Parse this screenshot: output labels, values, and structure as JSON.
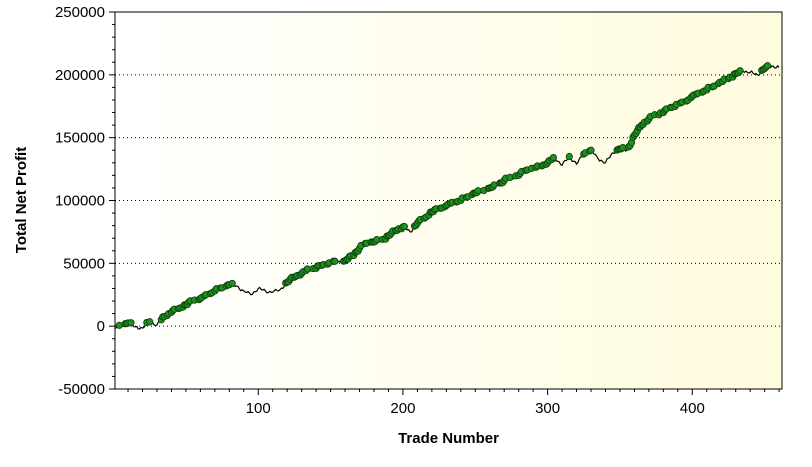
{
  "colors": {
    "background": "#ffffff",
    "plot_bg_start": "#ffffff",
    "plot_bg_end": "#fffbdd",
    "equity_line": "#000000",
    "new_high_marker": "#1f8f1f",
    "new_high_marker_edge": "#0a3d0a",
    "grid": "#000000"
  },
  "chart_data": {
    "type": "line",
    "title": "",
    "xlabel": "Trade Number",
    "ylabel": "Total Net Profit",
    "xlim": [
      1,
      462
    ],
    "ylim": [
      -50000,
      250000
    ],
    "x_ticks": [
      100,
      200,
      300,
      400
    ],
    "x_tick_labels": [
      "100",
      "200",
      "300",
      "400"
    ],
    "y_ticks": [
      -50000,
      0,
      50000,
      100000,
      150000,
      200000,
      250000
    ],
    "y_tick_labels": [
      "-50000",
      "0",
      "50000",
      "100000",
      "150000",
      "200000",
      "250000"
    ],
    "grid": "horizontal dotted",
    "series": [
      {
        "markers": "green dots at new equity highs",
        "x": [
          1,
          5,
          10,
          15,
          20,
          25,
          30,
          35,
          40,
          45,
          50,
          55,
          60,
          65,
          70,
          75,
          80,
          85,
          90,
          95,
          100,
          105,
          110,
          115,
          120,
          125,
          130,
          135,
          140,
          145,
          150,
          155,
          160,
          165,
          170,
          175,
          180,
          185,
          190,
          195,
          200,
          205,
          210,
          215,
          220,
          225,
          230,
          235,
          240,
          245,
          250,
          255,
          260,
          265,
          270,
          275,
          280,
          285,
          290,
          295,
          300,
          305,
          310,
          315,
          320,
          325,
          330,
          335,
          340,
          345,
          350,
          355,
          360,
          365,
          370,
          375,
          380,
          385,
          390,
          395,
          400,
          405,
          410,
          415,
          420,
          425,
          430,
          435,
          440,
          445,
          450,
          455,
          460
        ],
        "y": [
          -2000,
          500,
          2500,
          -500,
          -1500,
          3500,
          1000,
          7500,
          11000,
          14000,
          17000,
          20000,
          22000,
          24500,
          28000,
          30500,
          33000,
          32000,
          28000,
          25000,
          30000,
          28000,
          27000,
          29000,
          35000,
          39000,
          42000,
          45000,
          46000,
          49000,
          50000,
          51000,
          52000,
          56000,
          62000,
          66000,
          67000,
          68000,
          72000,
          76000,
          79000,
          75000,
          82000,
          86000,
          91000,
          93000,
          96000,
          98000,
          100000,
          103000,
          106000,
          107000,
          110000,
          112000,
          116000,
          118000,
          120000,
          124000,
          125000,
          127000,
          130000,
          134000,
          128000,
          135000,
          129000,
          137000,
          140000,
          133000,
          130000,
          138000,
          141000,
          140000,
          152000,
          160000,
          165000,
          168000,
          170000,
          174000,
          176000,
          178000,
          183000,
          185000,
          188000,
          191000,
          194000,
          197000,
          201000,
          203000,
          202000,
          200000,
          205000,
          207000,
          206000
        ]
      }
    ]
  }
}
